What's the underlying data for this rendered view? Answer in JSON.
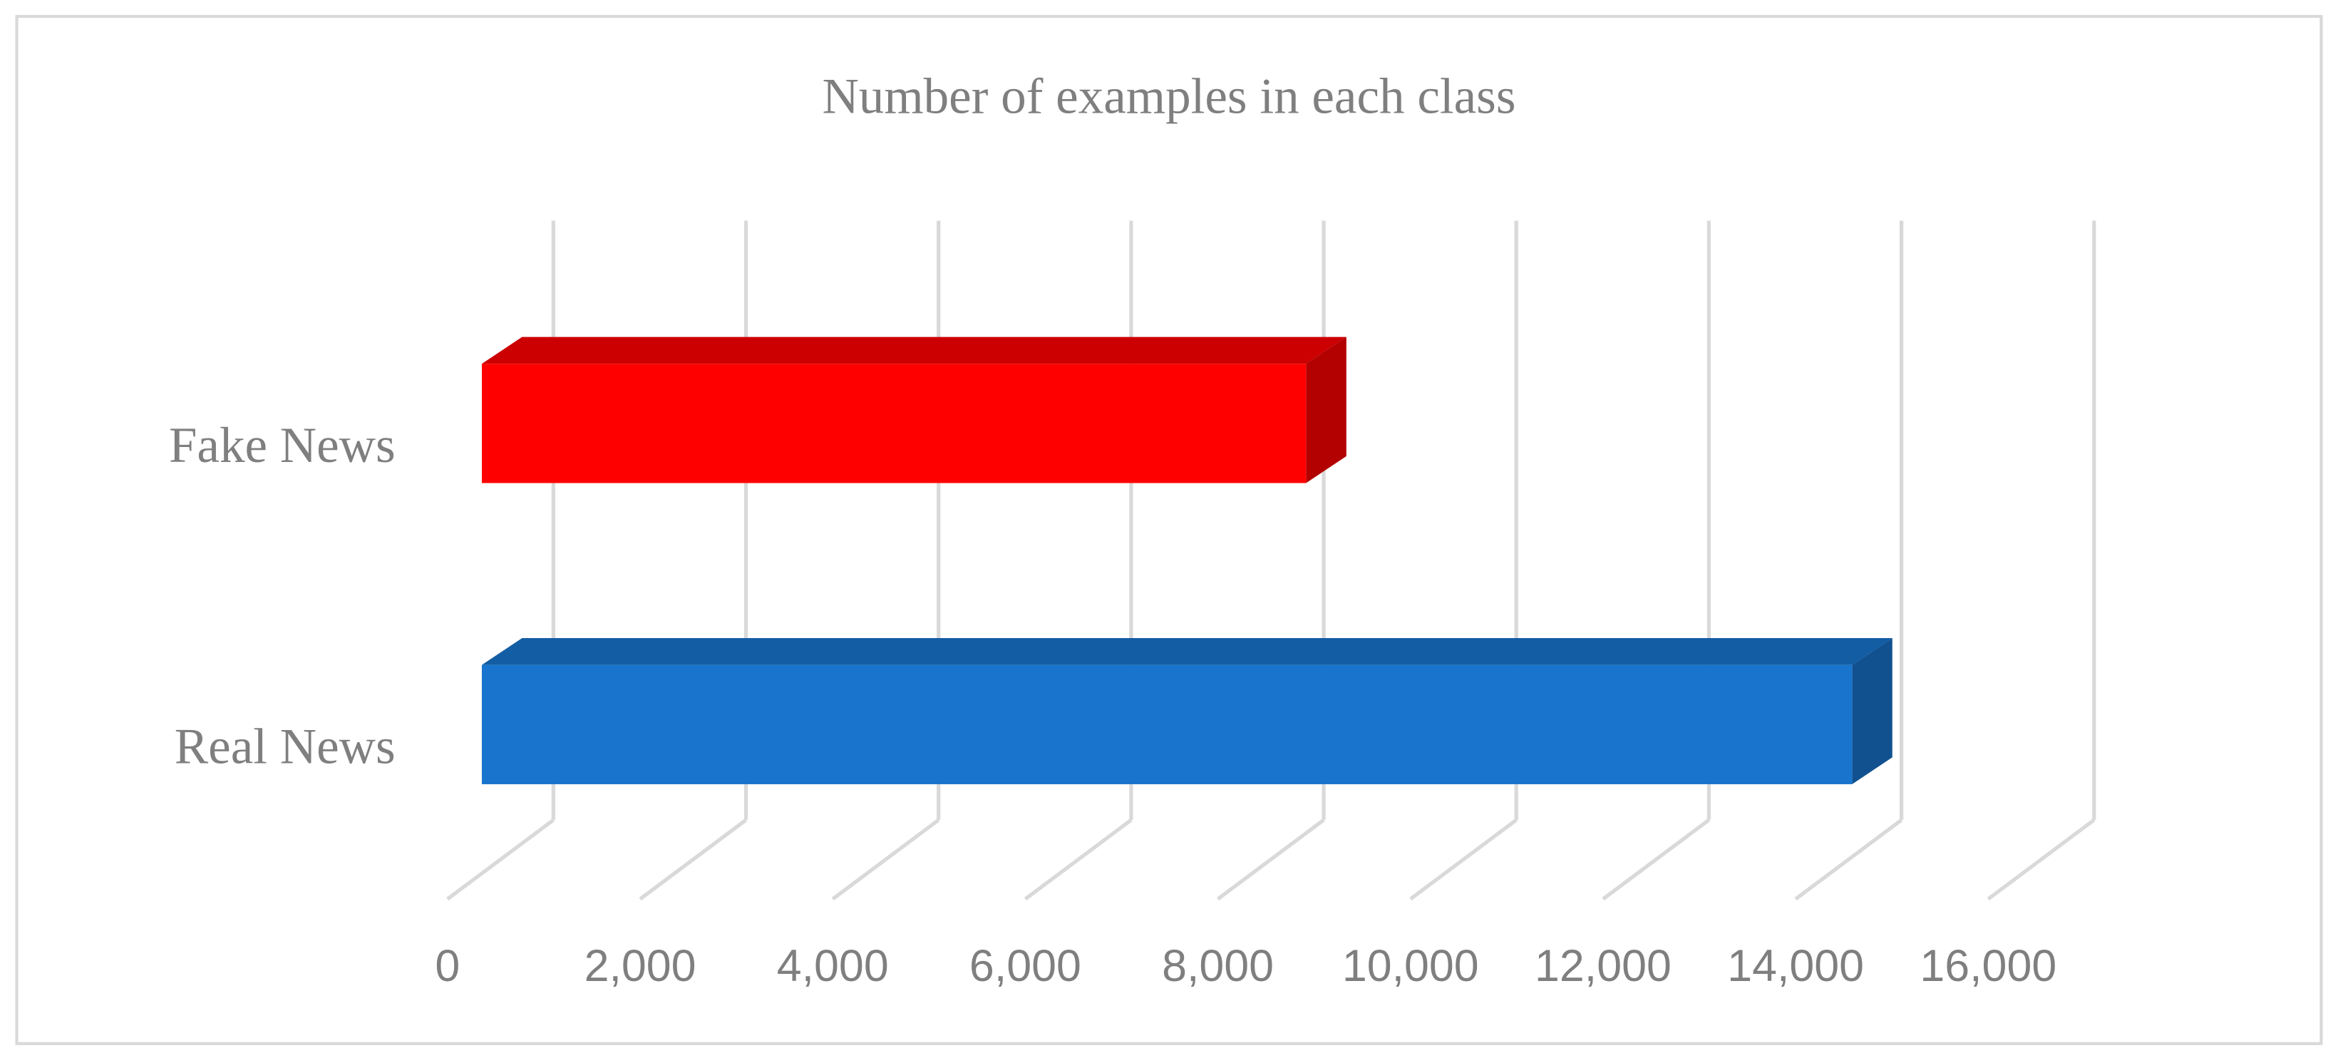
{
  "chart_data": {
    "type": "bar3d",
    "orientation": "horizontal",
    "title": "Number of examples in each class",
    "categories": [
      "Fake News",
      "Real News"
    ],
    "values": [
      8560,
      14230
    ],
    "colors": [
      "#ff0000",
      "#1874cd"
    ],
    "xlim": [
      0,
      16000
    ],
    "xticks": [
      0,
      {
        "value": 2000,
        "label": "2,000"
      },
      {
        "value": 4000,
        "label": "4,000"
      },
      {
        "value": 6000,
        "label": "6,000"
      },
      {
        "value": 8000,
        "label": "8,000"
      },
      {
        "value": 10000,
        "label": "10,000"
      },
      {
        "value": 12000,
        "label": "12,000"
      },
      {
        "value": 14000,
        "label": "14,000"
      },
      {
        "value": 16000,
        "label": "16,000"
      }
    ],
    "grid": true
  }
}
